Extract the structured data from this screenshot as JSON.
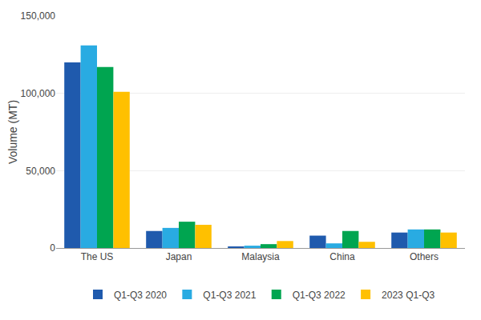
{
  "chart_data": {
    "type": "bar",
    "categories": [
      "The US",
      "Japan",
      "Malaysia",
      "China",
      "Others"
    ],
    "series": [
      {
        "name": "Q1-Q3 2020",
        "color": "#1f5aad",
        "values": [
          120000,
          11000,
          1000,
          8000,
          10000
        ]
      },
      {
        "name": "Q1-Q3 2021",
        "color": "#29abe2",
        "values": [
          131000,
          13000,
          1500,
          3000,
          12000
        ]
      },
      {
        "name": "Q1-Q3 2022",
        "color": "#00a550",
        "values": [
          117000,
          17000,
          2500,
          11000,
          12000
        ]
      },
      {
        "name": "2023 Q1-Q3",
        "color": "#ffc000",
        "values": [
          101000,
          15000,
          4500,
          4000,
          10000
        ]
      }
    ],
    "ylabel": "Volume (MT)",
    "ylim": [
      0,
      150000
    ],
    "yticks": [
      0,
      {
        "value": 50000,
        "label": "50,000"
      },
      {
        "value": 100000,
        "label": "100,000"
      },
      {
        "value": 150000,
        "label": "150,000"
      }
    ],
    "grid": true,
    "legend": "bottom"
  }
}
